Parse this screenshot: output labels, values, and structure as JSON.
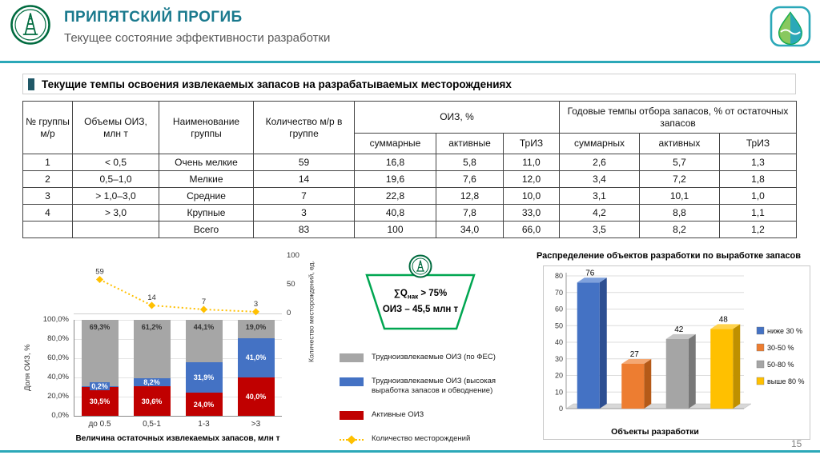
{
  "slide": {
    "page_number": "15"
  },
  "header": {
    "title": "ПРИПЯТСКИЙ ПРОГИБ",
    "subtitle": "Текущее состояние эффективности разработки"
  },
  "section_heading": "Текущие темпы освоения извлекаемых запасов на разрабатываемых месторождениях",
  "table": {
    "columns": [
      "№ группы м/р",
      "Объемы ОИЗ, млн т",
      "Наименование группы",
      "Количество м/р в группе"
    ],
    "group_oiz": {
      "label": "ОИЗ, %",
      "sub": [
        "суммарные",
        "активные",
        "ТрИЗ"
      ]
    },
    "group_rates": {
      "label": "Годовые темпы отбора запасов, % от остаточных запасов",
      "sub": [
        "суммарных",
        "активных",
        "ТрИЗ"
      ]
    },
    "rows": [
      [
        "1",
        "< 0,5",
        "Очень мелкие",
        "59",
        "16,8",
        "5,8",
        "11,0",
        "2,6",
        "5,7",
        "1,3"
      ],
      [
        "2",
        "0,5–1,0",
        "Мелкие",
        "14",
        "19,6",
        "7,6",
        "12,0",
        "3,4",
        "7,2",
        "1,8"
      ],
      [
        "3",
        "> 1,0–3,0",
        "Средние",
        "7",
        "22,8",
        "12,8",
        "10,0",
        "3,1",
        "10,1",
        "1,0"
      ],
      [
        "4",
        "> 3,0",
        "Крупные",
        "3",
        "40,8",
        "7,8",
        "33,0",
        "4,2",
        "8,8",
        "1,1"
      ],
      [
        "",
        "",
        "Всего",
        "83",
        "100",
        "34,0",
        "66,0",
        "3,5",
        "8,2",
        "1,2"
      ]
    ]
  },
  "callout": {
    "prefix": "∑Q",
    "sub": "нак",
    "suffix": " > 75%",
    "line2": "ОИЗ – 45,5 млн т"
  },
  "legend": [
    {
      "type": "box",
      "color": "#A6A6A6",
      "label": "Трудноизвлекаемые ОИЗ (по ФЕС)"
    },
    {
      "type": "box",
      "color": "#4472C4",
      "label": "Трудноизвлекаемые ОИЗ (высокая выработка запасов и обводнение)"
    },
    {
      "type": "box",
      "color": "#C00000",
      "label": "Активные ОИЗ"
    },
    {
      "type": "line",
      "color": "#FFC000",
      "label": "Количество месторождений"
    }
  ],
  "chart_data": [
    {
      "type": "bar",
      "variant": "stacked-percent-with-line",
      "categories": [
        "до 0.5",
        "0,5-1",
        "1-3",
        ">3"
      ],
      "series": [
        {
          "name": "Активные ОИЗ",
          "color": "#C00000",
          "values": [
            30.5,
            30.6,
            24.0,
            40.0
          ],
          "labels": [
            "30,5%",
            "30,6%",
            "24,0%",
            "40,0%"
          ],
          "label_color": "#FFFFFF",
          "label_pos": "center"
        },
        {
          "name": "Трудноизвлекаемые ОИЗ (высокая выработка запасов и обводнение)",
          "color": "#4472C4",
          "values": [
            0.2,
            8.2,
            31.9,
            41.0
          ],
          "labels": [
            "0,2%",
            "8,2%",
            "31,9%",
            "41,0%"
          ],
          "label_color": "#FFFFFF",
          "label_bg": "#4472C4",
          "label_pos": "center"
        },
        {
          "name": "Трудноизвлекаемые ОИЗ (по ФЕС)",
          "color": "#A6A6A6",
          "values": [
            69.3,
            61.2,
            44.1,
            19.0
          ],
          "labels": [
            "69,3%",
            "61,2%",
            "44,1%",
            "19,0%"
          ],
          "label_color": "#333333",
          "label_pos": "top"
        }
      ],
      "line": {
        "name": "Количество месторождений",
        "color": "#FFC000",
        "values": [
          59,
          14,
          7,
          3
        ]
      },
      "ylabel": "Доля ОИЗ, %",
      "y2label": "Количество месторождений, ед.",
      "xlabel": "Величина остаточных извлекаемых запасов, млн т",
      "y_ticks": [
        "0,0%",
        "20,0%",
        "40,0%",
        "60,0%",
        "80,0%",
        "100,0%"
      ],
      "y2_ticks": [
        "0",
        "50",
        "100"
      ],
      "ylim": [
        0,
        100
      ],
      "y2lim": [
        0,
        100
      ],
      "grid": true
    },
    {
      "type": "bar",
      "variant": "3d",
      "title": "Распределение объектов разработки по выработке запасов",
      "categories": [
        "ниже 30 %",
        "30-50 %",
        "50-80 %",
        "выше 80 %"
      ],
      "values": [
        76,
        27,
        42,
        48
      ],
      "colors": [
        {
          "main": "#4472C4",
          "light": "#7FA1DC",
          "dark": "#2D4F92"
        },
        {
          "main": "#ED7D31",
          "light": "#F4A873",
          "dark": "#B55A18"
        },
        {
          "main": "#A5A5A5",
          "light": "#C6C6C6",
          "dark": "#787878"
        },
        {
          "main": "#FFC000",
          "light": "#FFD34D",
          "dark": "#BF9000"
        }
      ],
      "xlabel": "Объекты разработки",
      "ylim": [
        0,
        80
      ],
      "y_tick_step": 10,
      "legend_position": "right",
      "grid": true
    }
  ]
}
